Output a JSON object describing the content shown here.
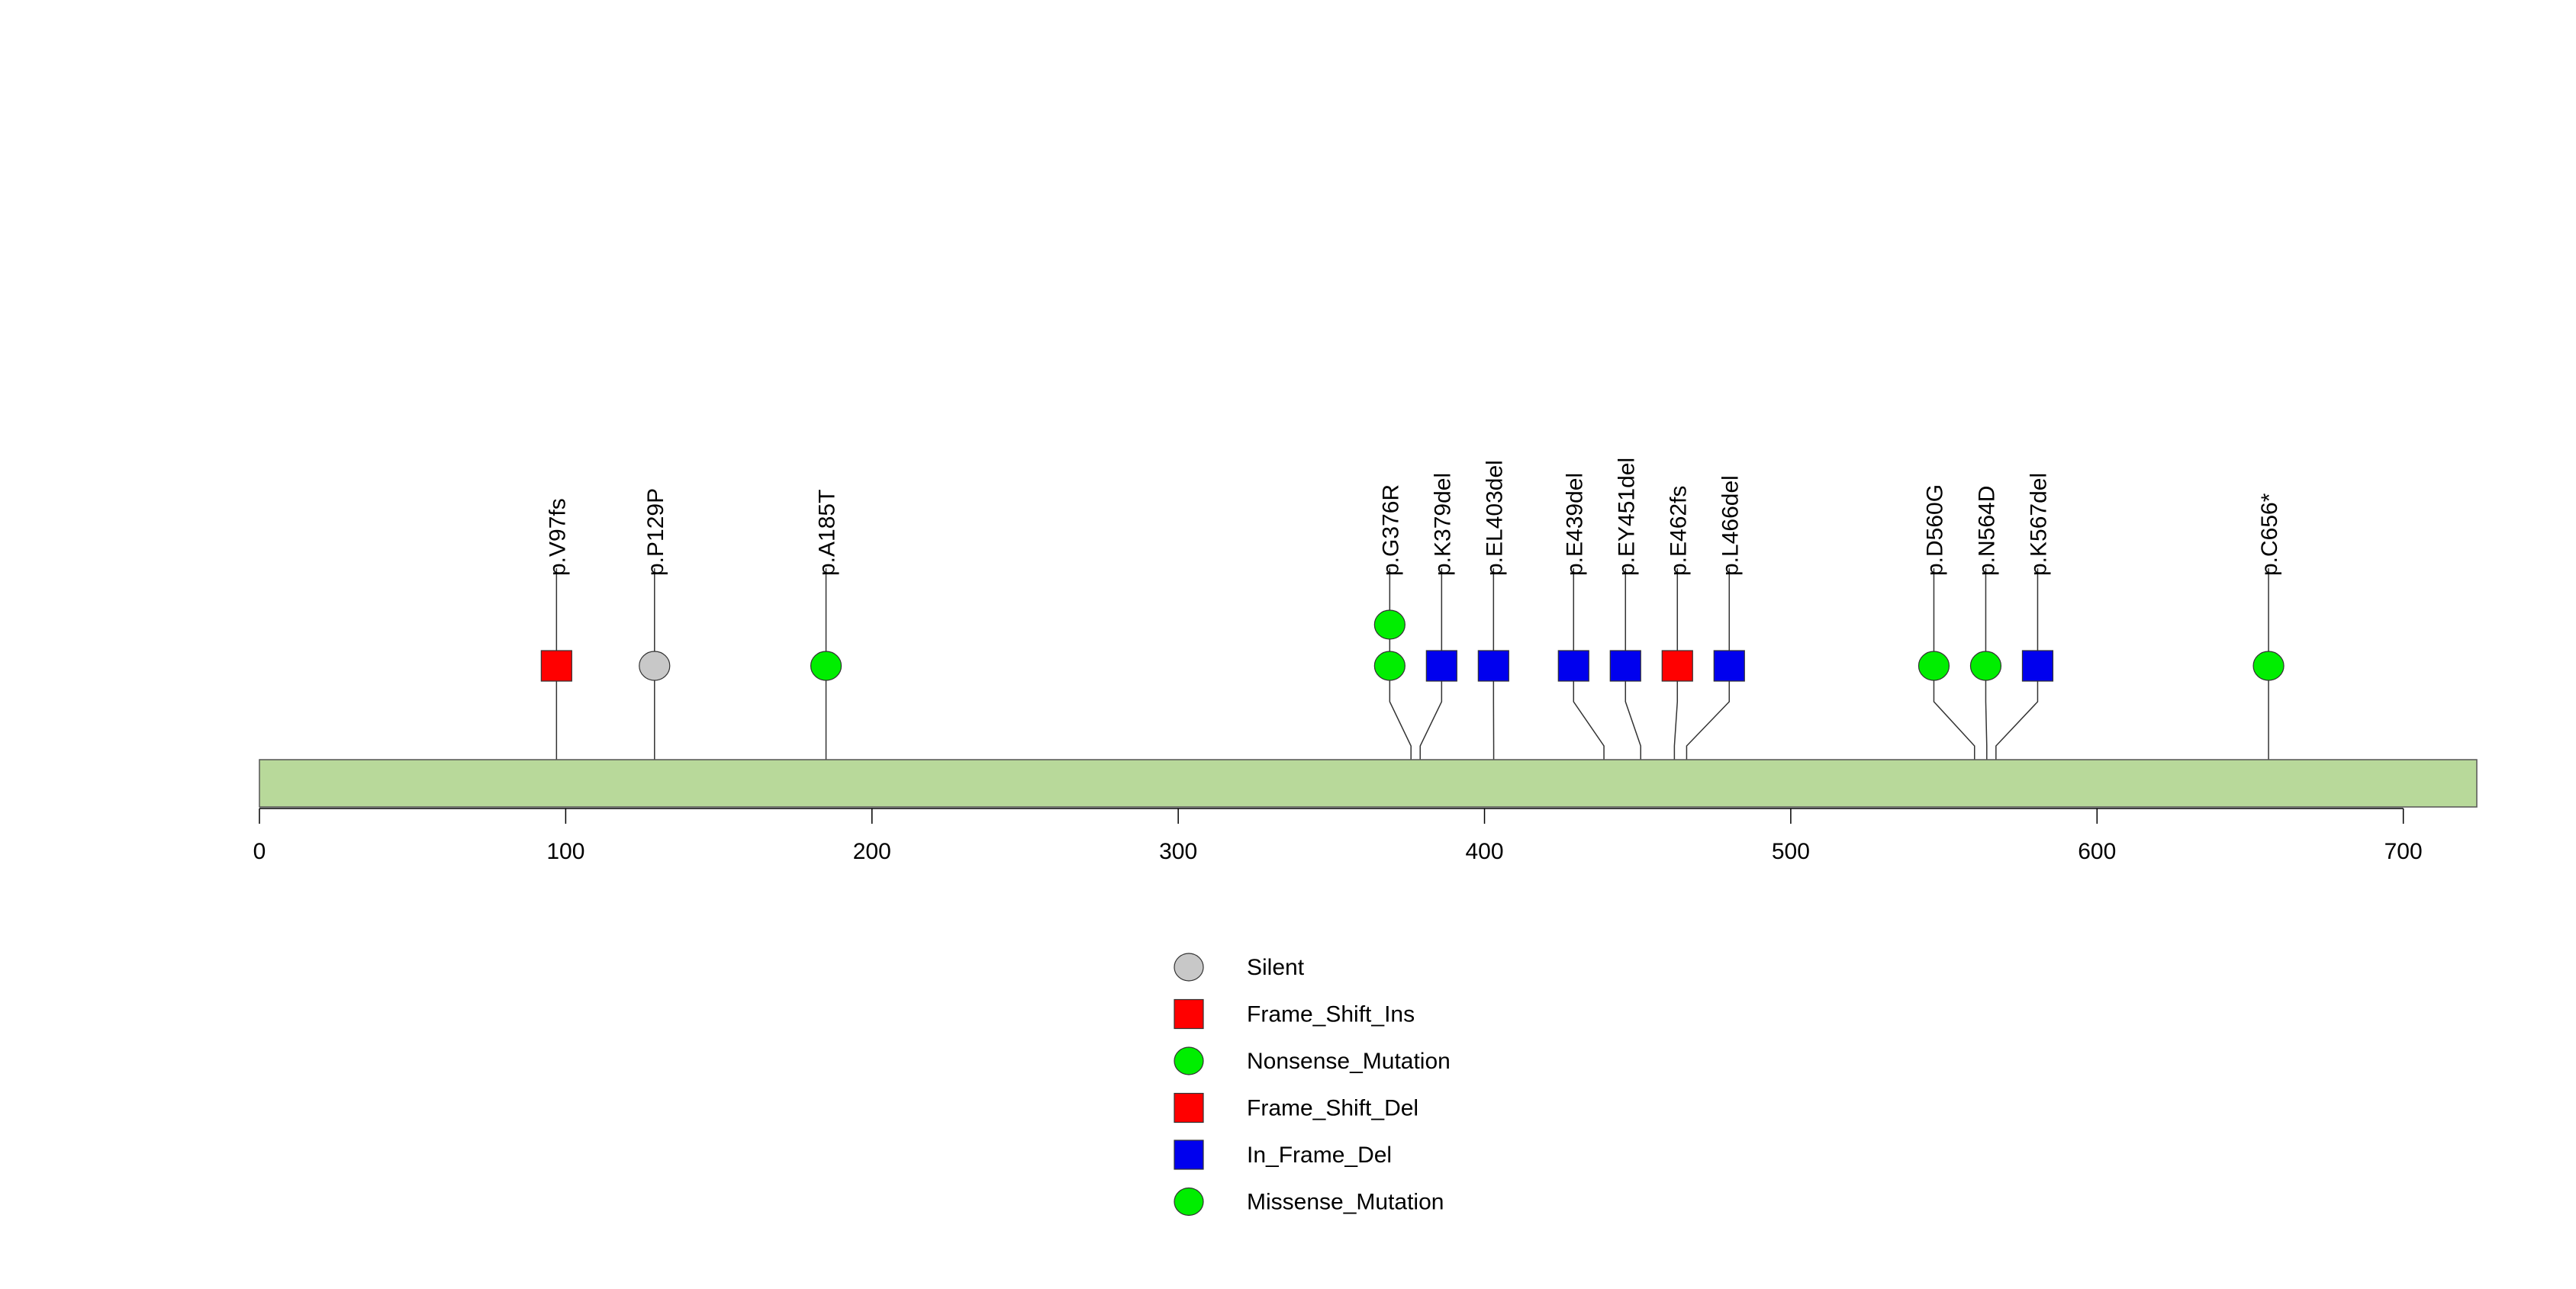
{
  "chart_data": {
    "type": "lollipop",
    "xlim": [
      0,
      724
    ],
    "x_ticks": [
      0,
      100,
      200,
      300,
      400,
      500,
      600,
      700
    ],
    "protein_length": 724,
    "colors": {
      "domain_fill": "#b8d99a",
      "silent": "#c8c8c8",
      "frameshift_ins": "#ff0000",
      "nonsense": "#00ee00",
      "frameshift_del": "#ff0000",
      "in_frame_del": "#0000ee",
      "missense": "#00ee00"
    },
    "mutations": [
      {
        "label": "p.V97fs",
        "position": 97,
        "type": "Frame_Shift_Ins",
        "shape": "square",
        "color": "#ff0000",
        "count": 1
      },
      {
        "label": "p.P129P",
        "position": 129,
        "type": "Silent",
        "shape": "circle",
        "color": "#c8c8c8",
        "count": 1
      },
      {
        "label": "p.A185T",
        "position": 185,
        "type": "Missense_Mutation",
        "shape": "circle",
        "color": "#00ee00",
        "count": 1
      },
      {
        "label": "p.G376R",
        "position": 376,
        "type": "Missense_Mutation",
        "shape": "circle",
        "color": "#00ee00",
        "count": 2
      },
      {
        "label": "p.K379del",
        "position": 379,
        "type": "In_Frame_Del",
        "shape": "square",
        "color": "#0000ee",
        "count": 1
      },
      {
        "label": "p.EL403del",
        "position": 403,
        "type": "In_Frame_Del",
        "shape": "square",
        "color": "#0000ee",
        "count": 1
      },
      {
        "label": "p.E439del",
        "position": 439,
        "type": "In_Frame_Del",
        "shape": "square",
        "color": "#0000ee",
        "count": 1
      },
      {
        "label": "p.EY451del",
        "position": 451,
        "type": "In_Frame_Del",
        "shape": "square",
        "color": "#0000ee",
        "count": 1
      },
      {
        "label": "p.E462fs",
        "position": 462,
        "type": "Frame_Shift_Del",
        "shape": "square",
        "color": "#ff0000",
        "count": 1
      },
      {
        "label": "p.L466del",
        "position": 466,
        "type": "In_Frame_Del",
        "shape": "square",
        "color": "#0000ee",
        "count": 1
      },
      {
        "label": "p.D560G",
        "position": 560,
        "type": "Missense_Mutation",
        "shape": "circle",
        "color": "#00ee00",
        "count": 1
      },
      {
        "label": "p.N564D",
        "position": 564,
        "type": "Missense_Mutation",
        "shape": "circle",
        "color": "#00ee00",
        "count": 1
      },
      {
        "label": "p.K567del",
        "position": 567,
        "type": "In_Frame_Del",
        "shape": "square",
        "color": "#0000ee",
        "count": 1
      },
      {
        "label": "p.C656*",
        "position": 656,
        "type": "Nonsense_Mutation",
        "shape": "circle",
        "color": "#00ee00",
        "count": 1
      }
    ],
    "legend": [
      {
        "label": "Silent",
        "shape": "circle",
        "color": "#c8c8c8"
      },
      {
        "label": "Frame_Shift_Ins",
        "shape": "square",
        "color": "#ff0000"
      },
      {
        "label": "Nonsense_Mutation",
        "shape": "circle",
        "color": "#00ee00"
      },
      {
        "label": "Frame_Shift_Del",
        "shape": "square",
        "color": "#ff0000"
      },
      {
        "label": "In_Frame_Del",
        "shape": "square",
        "color": "#0000ee"
      },
      {
        "label": "Missense_Mutation",
        "shape": "circle",
        "color": "#00ee00"
      }
    ],
    "legend_position": "bottom-center"
  }
}
